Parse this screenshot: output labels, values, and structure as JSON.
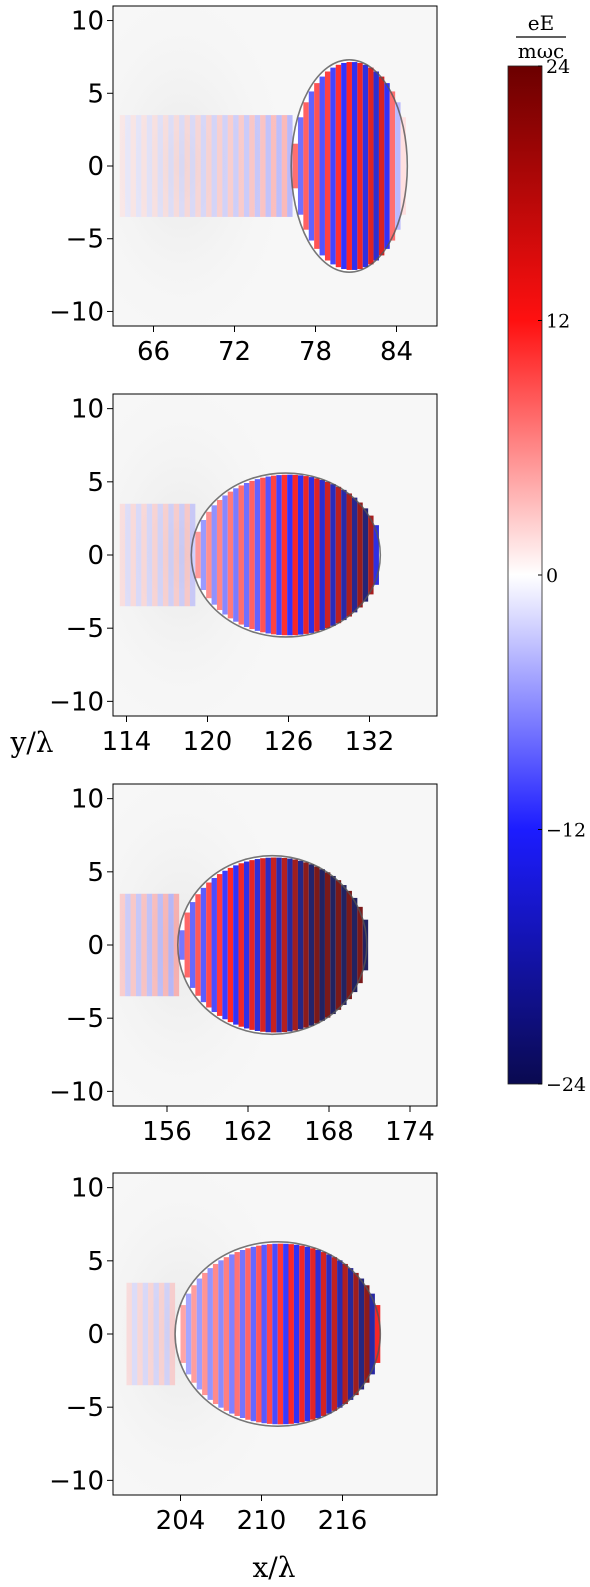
{
  "chart_data": {
    "type": "heatmap",
    "xlabel": "x/λ",
    "ylabel": "y/λ",
    "colorbar": {
      "label_numerator": "eE",
      "label_denominator": "mωc",
      "min": -24,
      "max": 24,
      "ticks": [
        24,
        12,
        0,
        -12,
        -24
      ],
      "tick_labels": [
        "24",
        "12",
        "0",
        "−12",
        "−24"
      ],
      "colors": [
        "#0a0a50",
        "#1c1cff",
        "#ffffff",
        "#ff1010",
        "#6b0000"
      ]
    },
    "panels": [
      {
        "xlim": [
          63,
          87
        ],
        "ylim": [
          -11,
          11
        ],
        "xticks": [
          66,
          72,
          78,
          84
        ],
        "xtick_labels": [
          "66",
          "72",
          "78",
          "84"
        ],
        "yticks": [
          10,
          5,
          0,
          -5,
          -10
        ],
        "ytick_labels": [
          "10",
          "5",
          "0",
          "−5",
          "−10"
        ],
        "bubble": {
          "front_x": 84.8,
          "back_x": 76.2,
          "radius_y": 7.3
        },
        "laser": {
          "x_start": 63.5,
          "x_end": 84.5,
          "period": 0.8,
          "peak_x": 82.5,
          "amplitude": 10
        }
      },
      {
        "xlim": [
          113,
          137
        ],
        "ylim": [
          -11,
          11
        ],
        "xticks": [
          114,
          120,
          126,
          132
        ],
        "xtick_labels": [
          "114",
          "120",
          "126",
          "132"
        ],
        "yticks": [
          10,
          5,
          0,
          -5,
          -10
        ],
        "ytick_labels": [
          "10",
          "5",
          "0",
          "−5",
          "−10"
        ],
        "bubble": {
          "front_x": 132.8,
          "back_x": 118.8,
          "radius_y": 5.6
        },
        "laser": {
          "x_start": 113.5,
          "x_end": 132.6,
          "period": 0.8,
          "peak_x": 131.5,
          "amplitude": 14
        }
      },
      {
        "xlim": [
          152,
          176
        ],
        "ylim": [
          -11,
          11
        ],
        "xticks": [
          156,
          162,
          168,
          174
        ],
        "xtick_labels": [
          "156",
          "162",
          "168",
          "174"
        ],
        "yticks": [
          10,
          5,
          0,
          -5,
          -10
        ],
        "ytick_labels": [
          "10",
          "5",
          "0",
          "−5",
          "−10"
        ],
        "bubble": {
          "front_x": 170.8,
          "back_x": 156.8,
          "radius_y": 6.1
        },
        "laser": {
          "x_start": 152.5,
          "x_end": 170.6,
          "period": 0.8,
          "peak_x": 170.2,
          "amplitude": 22
        }
      },
      {
        "xlim": [
          199,
          223
        ],
        "ylim": [
          -11,
          11
        ],
        "xticks": [
          204,
          210,
          216
        ],
        "xtick_labels": [
          "204",
          "210",
          "216"
        ],
        "yticks": [
          10,
          5,
          0,
          -5,
          -10
        ],
        "ytick_labels": [
          "10",
          "5",
          "0",
          "−5",
          "−10"
        ],
        "bubble": {
          "front_x": 218.8,
          "back_x": 203.6,
          "radius_y": 6.3
        },
        "laser": {
          "x_start": 200.0,
          "x_end": 218.6,
          "period": 0.8,
          "peak_x": 217.5,
          "amplitude": 14
        }
      }
    ]
  }
}
